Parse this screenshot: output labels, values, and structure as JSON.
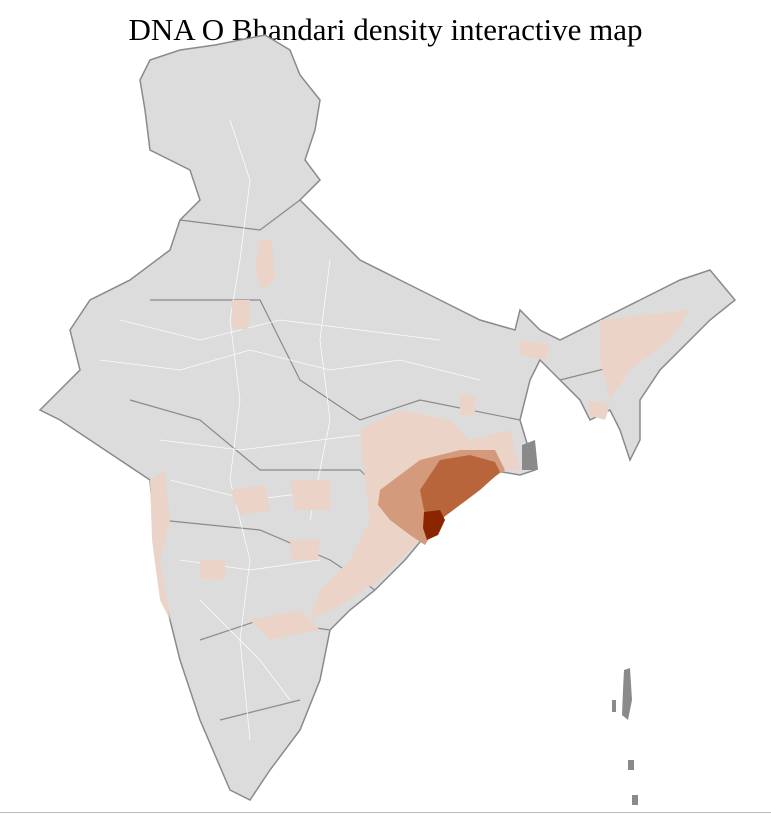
{
  "title": "DNA O Bhandari density interactive map",
  "colors": {
    "land": "#dcdcdc",
    "state_border": "#8a8a8a",
    "district_border": "#ffffff",
    "low_density": "#ecd3c7",
    "medium_density": "#d49a7c",
    "high_density": "#b8653c",
    "max_density": "#8b2500"
  }
}
